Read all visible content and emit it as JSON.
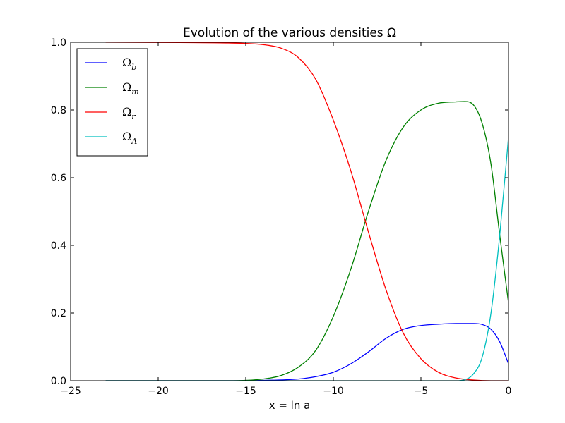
{
  "chart_data": {
    "type": "line",
    "title": "Evolution of the various densities Ω",
    "xlabel": "x = ln a",
    "ylabel": "",
    "xlim": [
      -25,
      0
    ],
    "ylim": [
      0.0,
      1.0
    ],
    "xticks": [
      -25,
      -20,
      -15,
      -10,
      -5,
      0
    ],
    "xtick_labels": [
      "−25",
      "−20",
      "−15",
      "−10",
      "−5",
      "0"
    ],
    "yticks": [
      0.0,
      0.2,
      0.4,
      0.6,
      0.8,
      1.0
    ],
    "ytick_labels": [
      "0.0",
      "0.2",
      "0.4",
      "0.6",
      "0.8",
      "1.0"
    ],
    "grid": false,
    "legend": "top-left",
    "series": [
      {
        "name": "Ωb",
        "label_main": "Ω",
        "label_sub": "b",
        "color": "#0000ff",
        "x": [
          -23,
          -16,
          -14,
          -12,
          -11,
          -10,
          -9,
          -8,
          -7,
          -6,
          -5,
          -4,
          -3,
          -2,
          -1.5,
          -1,
          -0.5,
          0
        ],
        "y": [
          0.0,
          0.0,
          0.001,
          0.005,
          0.012,
          0.025,
          0.05,
          0.085,
          0.125,
          0.152,
          0.163,
          0.167,
          0.169,
          0.169,
          0.166,
          0.152,
          0.115,
          0.05
        ]
      },
      {
        "name": "Ωm",
        "label_main": "Ω",
        "label_sub": "m",
        "color": "#008000",
        "x": [
          -23,
          -16,
          -14,
          -13,
          -12,
          -11,
          -10,
          -9,
          -8,
          -7,
          -6,
          -5,
          -4,
          -3,
          -2.5,
          -2,
          -1.5,
          -1,
          -0.5,
          0
        ],
        "y": [
          0.0,
          0.0,
          0.005,
          0.015,
          0.04,
          0.09,
          0.19,
          0.33,
          0.5,
          0.65,
          0.75,
          0.8,
          0.82,
          0.824,
          0.825,
          0.815,
          0.76,
          0.64,
          0.43,
          0.23
        ]
      },
      {
        "name": "Ωr",
        "label_main": "Ω",
        "label_sub": "r",
        "color": "#ff0000",
        "x": [
          -23,
          -18,
          -16,
          -14,
          -13,
          -12,
          -11,
          -10,
          -9,
          -8,
          -7,
          -6,
          -5,
          -4,
          -3,
          -2,
          -1,
          0
        ],
        "y": [
          1.0,
          0.999,
          0.998,
          0.993,
          0.983,
          0.955,
          0.89,
          0.77,
          0.62,
          0.44,
          0.27,
          0.14,
          0.065,
          0.025,
          0.008,
          0.002,
          0.0,
          0.0
        ]
      },
      {
        "name": "ΩΛ",
        "label_main": "Ω",
        "label_sub": "Λ",
        "color": "#00bfbf",
        "x": [
          -23,
          -4,
          -3,
          -2.5,
          -2,
          -1.5,
          -1,
          -0.5,
          0
        ],
        "y": [
          0.0,
          0.0,
          0.0,
          0.003,
          0.02,
          0.07,
          0.2,
          0.43,
          0.72
        ]
      }
    ]
  }
}
